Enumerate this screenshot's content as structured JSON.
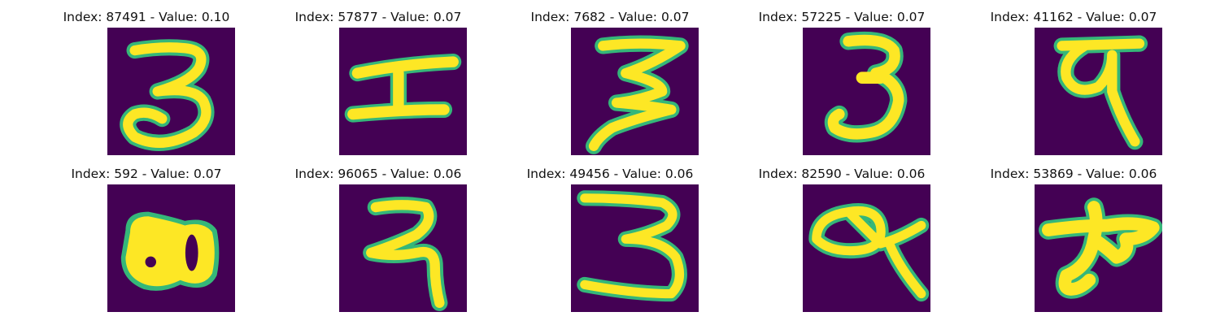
{
  "panels": [
    {
      "title": "Index: 87491 - Value: 0.10",
      "glyph": "devanagari-3-icon"
    },
    {
      "title": "Index: 57877 - Value: 0.07",
      "glyph": "devanagari-h-shape-icon"
    },
    {
      "title": "Index: 7682 - Value: 0.07",
      "glyph": "devanagari-3-icon"
    },
    {
      "title": "Index: 57225 - Value: 0.07",
      "glyph": "devanagari-3-icon"
    },
    {
      "title": "Index: 41162 - Value: 0.07",
      "glyph": "devanagari-9-icon"
    },
    {
      "title": "Index: 592 - Value: 0.07",
      "glyph": "devanagari-blob-icon"
    },
    {
      "title": "Index: 96065 - Value: 0.06",
      "glyph": "devanagari-2-icon"
    },
    {
      "title": "Index: 49456 - Value: 0.06",
      "glyph": "devanagari-3-icon"
    },
    {
      "title": "Index: 82590 - Value: 0.06",
      "glyph": "devanagari-9-loop-icon"
    },
    {
      "title": "Index: 53869 - Value: 0.06",
      "glyph": "devanagari-star-shape-icon"
    }
  ],
  "colors": {
    "background": "#440154",
    "stroke_edge": "#35b779",
    "stroke_core": "#fde725"
  }
}
